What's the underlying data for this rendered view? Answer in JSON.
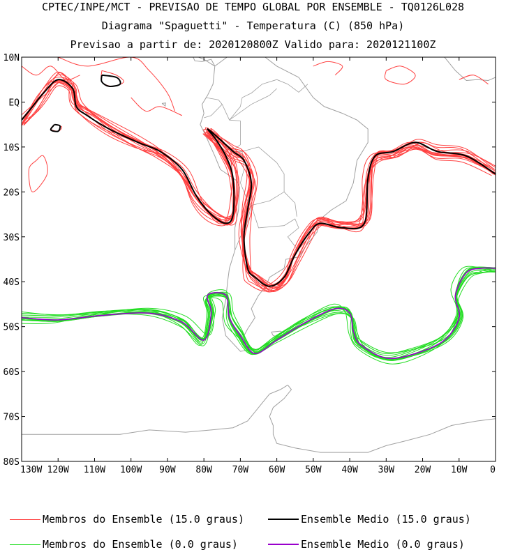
{
  "header": {
    "line1": "CPTEC/INPE/MCT - PREVISAO DE TEMPO GLOBAL POR ENSEMBLE - TQ0126L028",
    "line2": "Diagrama \"Spaguetti\" - Temperatura (C) (850 hPa)",
    "line3": "Previsao a partir de: 2020120800Z  Valido para: 2020121100Z"
  },
  "axes": {
    "lat_labels": [
      "10N",
      "EQ",
      "10S",
      "20S",
      "30S",
      "40S",
      "50S",
      "60S",
      "70S",
      "80S"
    ],
    "lon_labels": [
      "130W",
      "120W",
      "110W",
      "100W",
      "90W",
      "80W",
      "70W",
      "60W",
      "50W",
      "40W",
      "30W",
      "20W",
      "10W",
      "0"
    ]
  },
  "legend": {
    "members_15": "Membros do Ensemble (15.0 graus)",
    "mean_15": "Ensemble Medio (15.0 graus)",
    "members_0": "Membros do Ensemble (0.0 graus)",
    "mean_0": "Ensemble Medio (0.0 graus)"
  },
  "colors": {
    "members_15": "#ff4040",
    "mean_15": "#000000",
    "members_0": "#22dd22",
    "mean_0": "#9900cc",
    "coastline": "#a0a0a0"
  },
  "chart_data": {
    "type": "line",
    "subtype": "spaghetti-contour-map",
    "xlim": [
      -130,
      0
    ],
    "ylim": [
      -80,
      10
    ],
    "series": [
      {
        "name": "Ensemble Medio (15.0 graus)",
        "points": [
          [
            -130,
            -4
          ],
          [
            -127,
            -1
          ],
          [
            -124,
            2
          ],
          [
            -120,
            5
          ],
          [
            -116,
            3
          ],
          [
            -115,
            -1
          ],
          [
            -112,
            -3
          ],
          [
            -106,
            -6
          ],
          [
            -98,
            -9
          ],
          [
            -92,
            -11
          ],
          [
            -86,
            -15
          ],
          [
            -82,
            -21
          ],
          [
            -78,
            -25
          ],
          [
            -74,
            -27
          ],
          [
            -72,
            -25
          ],
          [
            -72,
            -17
          ],
          [
            -74,
            -12
          ],
          [
            -77,
            -8
          ],
          [
            -79,
            -6
          ],
          [
            -76,
            -8
          ],
          [
            -72,
            -11
          ],
          [
            -69,
            -13
          ],
          [
            -67,
            -18
          ],
          [
            -68,
            -24
          ],
          [
            -69,
            -30
          ],
          [
            -68,
            -37
          ],
          [
            -66,
            -39
          ],
          [
            -62,
            -41
          ],
          [
            -58,
            -39
          ],
          [
            -55,
            -34
          ],
          [
            -51,
            -29
          ],
          [
            -48,
            -27
          ],
          [
            -42,
            -28
          ],
          [
            -36,
            -27
          ],
          [
            -35,
            -17
          ],
          [
            -33,
            -12
          ],
          [
            -28,
            -11
          ],
          [
            -22,
            -9
          ],
          [
            -16,
            -11
          ],
          [
            -8,
            -12
          ],
          [
            0,
            -16
          ]
        ]
      },
      {
        "name": "Ensemble Medio (0.0 graus)",
        "points": [
          [
            -130,
            -48
          ],
          [
            -120,
            -48.5
          ],
          [
            -108,
            -47.5
          ],
          [
            -95,
            -47
          ],
          [
            -86,
            -49
          ],
          [
            -80,
            -53
          ],
          [
            -78,
            -47
          ],
          [
            -79,
            -43
          ],
          [
            -74,
            -43
          ],
          [
            -73,
            -48
          ],
          [
            -70,
            -52
          ],
          [
            -66,
            -56
          ],
          [
            -60,
            -53
          ],
          [
            -52,
            -49
          ],
          [
            -44,
            -46
          ],
          [
            -40,
            -47
          ],
          [
            -39,
            -51
          ],
          [
            -37,
            -54
          ],
          [
            -30,
            -57
          ],
          [
            -22,
            -56
          ],
          [
            -14,
            -53
          ],
          [
            -10,
            -48
          ],
          [
            -11,
            -43
          ],
          [
            -8,
            -38
          ],
          [
            -4,
            -37
          ],
          [
            0,
            -37
          ]
        ]
      }
    ]
  }
}
